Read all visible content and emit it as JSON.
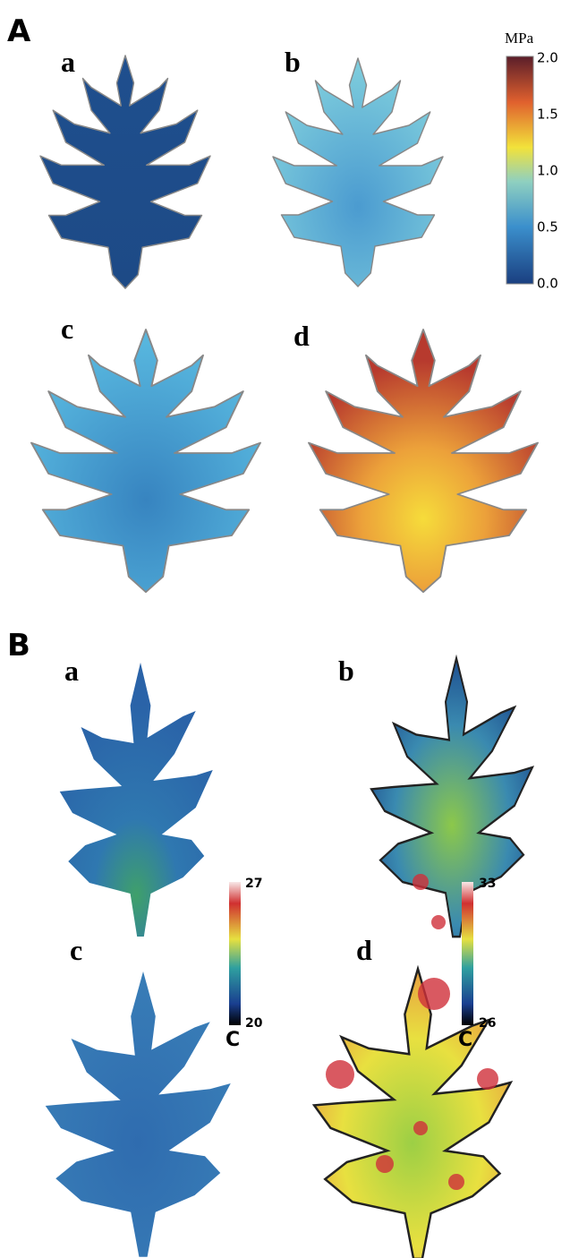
{
  "panel_a": {
    "label": "A",
    "subpanels": [
      "a",
      "b",
      "c",
      "d"
    ],
    "colorbar": {
      "unit": "MPa",
      "ticks": [
        "2.0",
        "1.5",
        "1.0",
        "0.5",
        "0.0"
      ]
    }
  },
  "panel_b": {
    "label": "B",
    "subpanels": [
      "a",
      "b",
      "c",
      "d"
    ],
    "colorbars": [
      {
        "max": "27",
        "min": "20",
        "unit": "C"
      },
      {
        "max": "33",
        "min": "26",
        "unit": "C"
      }
    ]
  }
}
